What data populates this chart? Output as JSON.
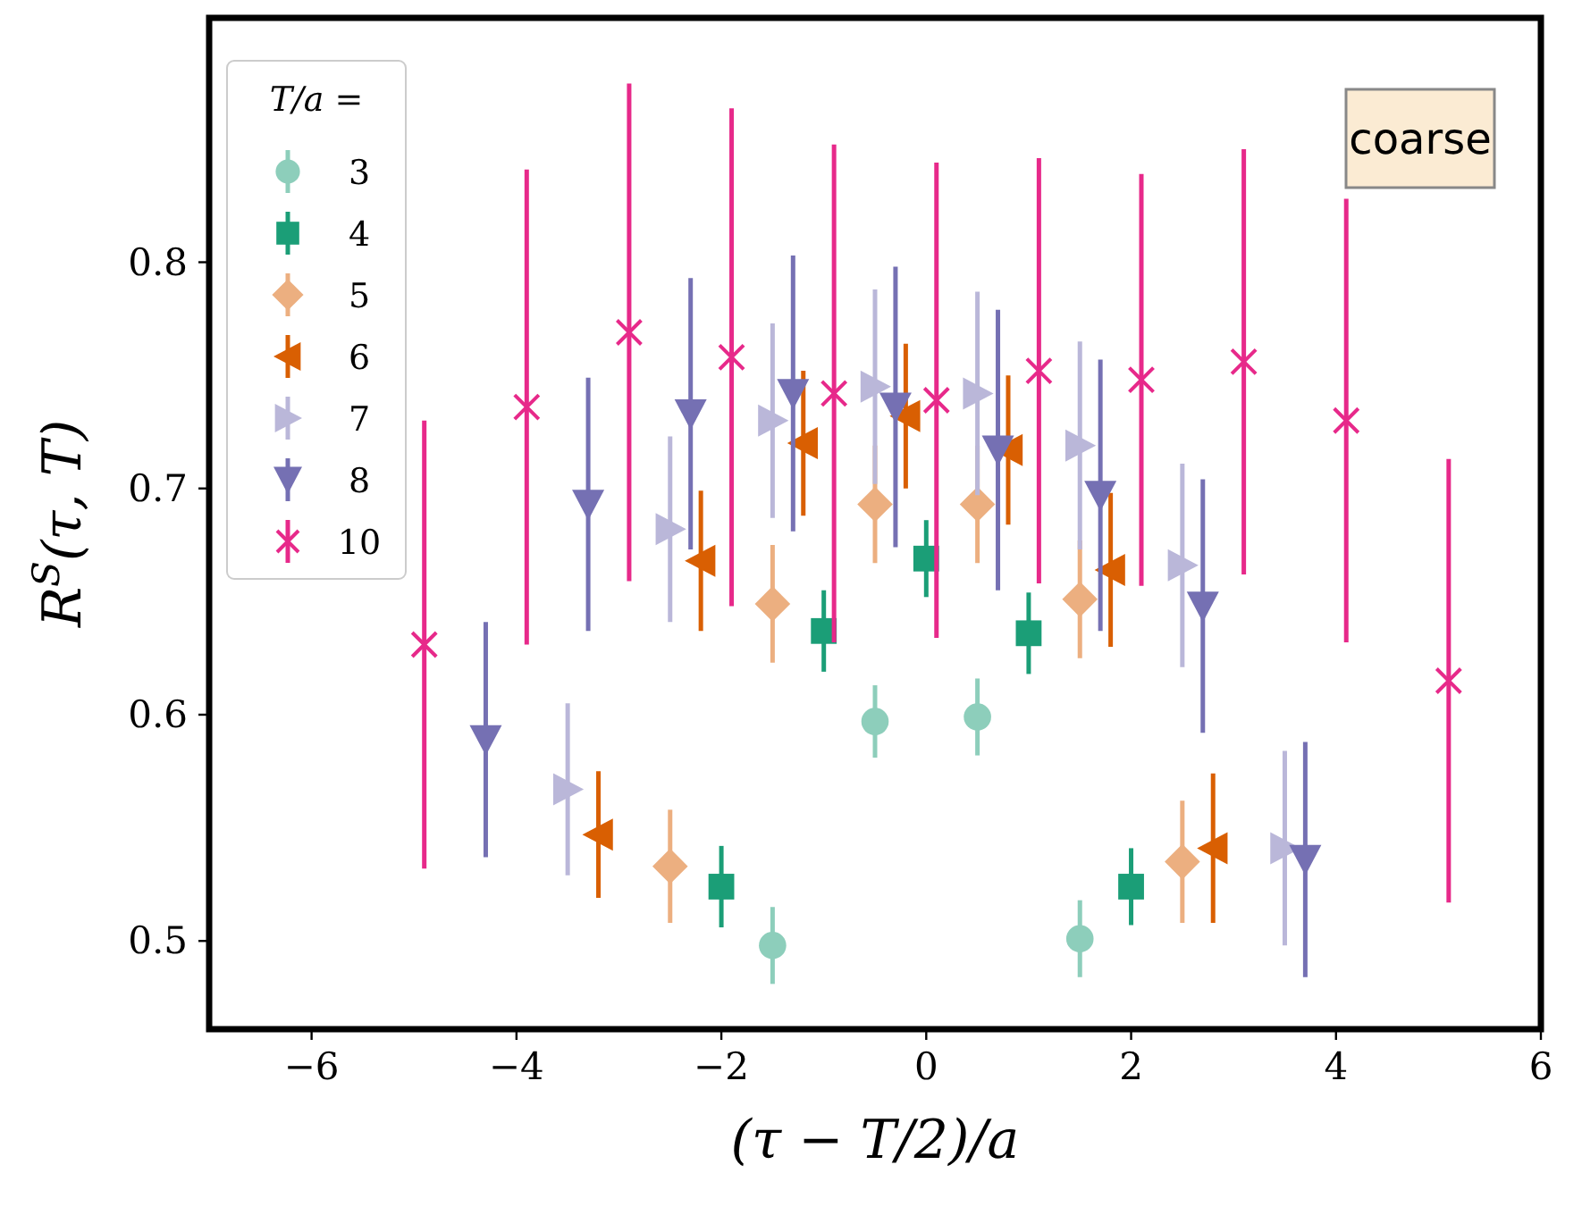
{
  "chart_data": {
    "type": "scatter",
    "xlabel": "(τ − T/2)/a",
    "ylabel": "R$^{S}$(τ, T)",
    "legend_title": "T/a =",
    "legend": "top left",
    "grid": false,
    "annotations": [
      "coarse"
    ],
    "xlim": [
      -7,
      6
    ],
    "xticks": [
      -6,
      -4,
      -2,
      0,
      2,
      4,
      6
    ],
    "ylim": [
      0.461,
      0.908
    ],
    "yticks": [
      0.5,
      0.6,
      0.7,
      0.8
    ],
    "series": [
      {
        "name": "3",
        "color": "#8dcebb",
        "marker": "circle",
        "x": [
          -1.5,
          -0.5,
          0.5,
          1.5
        ],
        "values": [
          0.498,
          0.597,
          0.599,
          0.501
        ],
        "errors": [
          0.017,
          0.016,
          0.017,
          0.017
        ]
      },
      {
        "name": "4",
        "color": "#1b9e77",
        "marker": "square",
        "x": [
          -2,
          -1,
          0,
          1,
          2
        ],
        "values": [
          0.524,
          0.637,
          0.669,
          0.636,
          0.524
        ],
        "errors": [
          0.018,
          0.018,
          0.017,
          0.018,
          0.017
        ]
      },
      {
        "name": "5",
        "color": "#ecaf80",
        "marker": "diamond",
        "x": [
          -2.5,
          -1.5,
          -0.5,
          0.5,
          1.5,
          2.5
        ],
        "values": [
          0.533,
          0.649,
          0.693,
          0.693,
          0.651,
          0.535
        ],
        "errors": [
          0.025,
          0.026,
          0.026,
          0.026,
          0.026,
          0.027
        ]
      },
      {
        "name": "6",
        "color": "#d95f02",
        "marker": "triangle-left",
        "x": [
          -3.2,
          -2.2,
          -1.2,
          -0.2,
          0.8,
          1.8,
          2.8
        ],
        "values": [
          0.547,
          0.668,
          0.72,
          0.732,
          0.717,
          0.664,
          0.541
        ],
        "errors": [
          0.028,
          0.031,
          0.032,
          0.032,
          0.033,
          0.034,
          0.033
        ]
      },
      {
        "name": "7",
        "color": "#bab7d9",
        "marker": "triangle-right",
        "x": [
          -3.5,
          -2.5,
          -1.5,
          -0.5,
          0.5,
          1.5,
          2.5,
          3.5
        ],
        "values": [
          0.567,
          0.682,
          0.73,
          0.745,
          0.742,
          0.719,
          0.666,
          0.541
        ],
        "errors": [
          0.038,
          0.041,
          0.043,
          0.043,
          0.045,
          0.046,
          0.045,
          0.043
        ]
      },
      {
        "name": "8",
        "color": "#7570b3",
        "marker": "triangle-down",
        "x": [
          -4.3,
          -3.3,
          -2.3,
          -1.3,
          -0.3,
          0.7,
          1.7,
          2.7,
          3.7
        ],
        "values": [
          0.589,
          0.693,
          0.733,
          0.742,
          0.736,
          0.717,
          0.697,
          0.648,
          0.536
        ],
        "errors": [
          0.052,
          0.056,
          0.06,
          0.061,
          0.062,
          0.062,
          0.06,
          0.056,
          0.052
        ]
      },
      {
        "name": "10",
        "color": "#e7298a",
        "marker": "cross",
        "x": [
          -4.9,
          -3.9,
          -2.9,
          -1.9,
          -0.9,
          0.1,
          1.1,
          2.1,
          3.1,
          4.1,
          5.1
        ],
        "values": [
          0.631,
          0.736,
          0.769,
          0.758,
          0.742,
          0.739,
          0.752,
          0.748,
          0.756,
          0.73,
          0.615
        ],
        "errors": [
          0.099,
          0.105,
          0.11,
          0.11,
          0.11,
          0.105,
          0.094,
          0.091,
          0.094,
          0.098,
          0.098
        ]
      }
    ]
  }
}
